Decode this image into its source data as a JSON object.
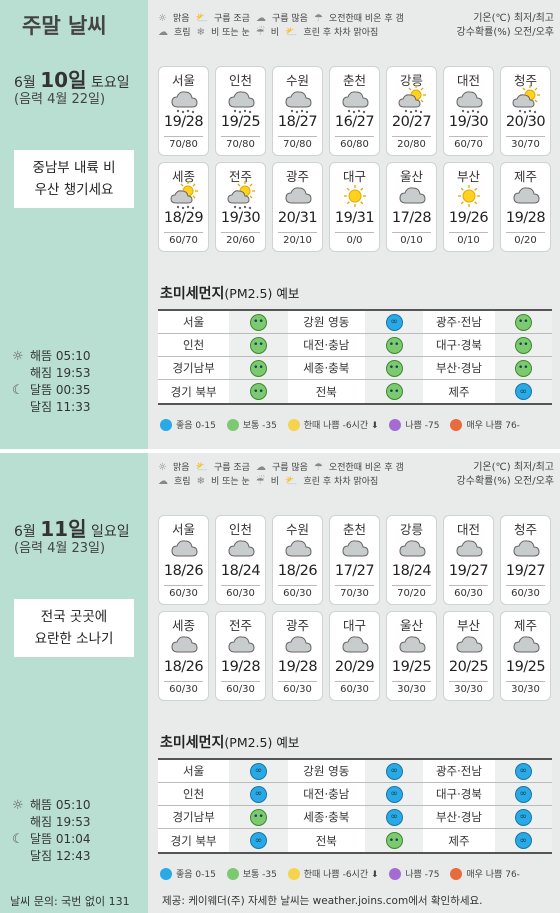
{
  "page_title": "주말 날씨",
  "legend": {
    "icons": [
      "맑음",
      "구름 조금",
      "구름 많음",
      "오전한때 비온 후 갬",
      "흐림",
      "비 또는 눈",
      "비",
      "흐린 후 차차 맑아짐"
    ],
    "right_line1": "기온(℃) 최저/최고",
    "right_line2": "강수확률(%) 오전/오후"
  },
  "days": [
    {
      "month": "6월",
      "day": "10일",
      "weekday": "토요일",
      "lunar": "(음력 4월 22일)",
      "headline_line1": "중남부 내륙 비",
      "headline_line2": "우산 챙기세요",
      "sunrise": "해뜸 05:10",
      "sunset": "해짐 19:53",
      "moonrise": "달뜸 00:35",
      "moonset": "달짐 11:33",
      "cities": [
        {
          "name": "서울",
          "temp": "19/28",
          "rain": "70/80",
          "icon": "rain-icon"
        },
        {
          "name": "인천",
          "temp": "19/25",
          "rain": "70/80",
          "icon": "rain-icon"
        },
        {
          "name": "수원",
          "temp": "18/27",
          "rain": "70/80",
          "icon": "rain-icon"
        },
        {
          "name": "춘천",
          "temp": "16/27",
          "rain": "60/80",
          "icon": "rain-icon"
        },
        {
          "name": "강릉",
          "temp": "20/27",
          "rain": "20/80",
          "icon": "sun-cloud-rain-icon"
        },
        {
          "name": "대전",
          "temp": "19/30",
          "rain": "60/70",
          "icon": "rain-icon"
        },
        {
          "name": "청주",
          "temp": "20/30",
          "rain": "30/70",
          "icon": "sun-cloud-rain-icon"
        },
        {
          "name": "세종",
          "temp": "18/29",
          "rain": "60/70",
          "icon": "sun-cloud-rain-icon"
        },
        {
          "name": "전주",
          "temp": "19/30",
          "rain": "20/60",
          "icon": "sun-cloud-rain-icon"
        },
        {
          "name": "광주",
          "temp": "20/31",
          "rain": "20/10",
          "icon": "cloud-icon"
        },
        {
          "name": "대구",
          "temp": "19/31",
          "rain": "0/0",
          "icon": "sun-icon"
        },
        {
          "name": "울산",
          "temp": "17/28",
          "rain": "0/10",
          "icon": "cloud-icon"
        },
        {
          "name": "부산",
          "temp": "19/26",
          "rain": "0/10",
          "icon": "sun-icon"
        },
        {
          "name": "제주",
          "temp": "19/28",
          "rain": "0/20",
          "icon": "cloud-icon"
        }
      ],
      "pm_title": "초미세먼지",
      "pm_sub": "(PM2.5) 예보",
      "pm_rows": [
        [
          {
            "name": "서울",
            "status": "normal"
          },
          {
            "name": "강원 영동",
            "status": "good"
          },
          {
            "name": "광주·전남",
            "status": "normal"
          }
        ],
        [
          {
            "name": "인천",
            "status": "normal"
          },
          {
            "name": "대전·충남",
            "status": "normal"
          },
          {
            "name": "대구·경북",
            "status": "normal"
          }
        ],
        [
          {
            "name": "경기남부",
            "status": "normal"
          },
          {
            "name": "세종·충북",
            "status": "normal"
          },
          {
            "name": "부산·경남",
            "status": "normal"
          }
        ],
        [
          {
            "name": "경기 북부",
            "status": "normal"
          },
          {
            "name": "전북",
            "status": "normal"
          },
          {
            "name": "제주",
            "status": "good"
          }
        ]
      ]
    },
    {
      "month": "6월",
      "day": "11일",
      "weekday": "일요일",
      "lunar": "(음력 4월 23일)",
      "headline_line1": "전국 곳곳에",
      "headline_line2": "요란한 소나기",
      "sunrise": "해뜸 05:10",
      "sunset": "해짐 19:53",
      "moonrise": "달뜸 01:04",
      "moonset": "달짐 12:43",
      "cities": [
        {
          "name": "서울",
          "temp": "18/26",
          "rain": "60/30",
          "icon": "cloud-icon"
        },
        {
          "name": "인천",
          "temp": "18/24",
          "rain": "60/30",
          "icon": "cloud-icon"
        },
        {
          "name": "수원",
          "temp": "18/26",
          "rain": "60/30",
          "icon": "cloud-icon"
        },
        {
          "name": "춘천",
          "temp": "17/27",
          "rain": "70/30",
          "icon": "cloud-icon"
        },
        {
          "name": "강릉",
          "temp": "18/24",
          "rain": "70/20",
          "icon": "cloud-icon"
        },
        {
          "name": "대전",
          "temp": "19/27",
          "rain": "60/30",
          "icon": "cloud-icon"
        },
        {
          "name": "청주",
          "temp": "19/27",
          "rain": "60/30",
          "icon": "cloud-icon"
        },
        {
          "name": "세종",
          "temp": "18/26",
          "rain": "60/30",
          "icon": "cloud-icon"
        },
        {
          "name": "전주",
          "temp": "19/28",
          "rain": "60/30",
          "icon": "cloud-icon"
        },
        {
          "name": "광주",
          "temp": "19/28",
          "rain": "60/30",
          "icon": "cloud-icon"
        },
        {
          "name": "대구",
          "temp": "20/29",
          "rain": "60/30",
          "icon": "cloud-icon"
        },
        {
          "name": "울산",
          "temp": "19/25",
          "rain": "30/30",
          "icon": "cloud-icon"
        },
        {
          "name": "부산",
          "temp": "20/25",
          "rain": "30/30",
          "icon": "cloud-icon"
        },
        {
          "name": "제주",
          "temp": "19/25",
          "rain": "30/30",
          "icon": "cloud-icon"
        }
      ],
      "pm_title": "초미세먼지",
      "pm_sub": "(PM2.5) 예보",
      "pm_rows": [
        [
          {
            "name": "서울",
            "status": "good"
          },
          {
            "name": "강원 영동",
            "status": "good"
          },
          {
            "name": "광주·전남",
            "status": "good"
          }
        ],
        [
          {
            "name": "인천",
            "status": "good"
          },
          {
            "name": "대전·충남",
            "status": "good"
          },
          {
            "name": "대구·경북",
            "status": "good"
          }
        ],
        [
          {
            "name": "경기남부",
            "status": "normal"
          },
          {
            "name": "세종·충북",
            "status": "good"
          },
          {
            "name": "부산·경남",
            "status": "good"
          }
        ],
        [
          {
            "name": "경기 북부",
            "status": "good"
          },
          {
            "name": "전북",
            "status": "normal"
          },
          {
            "name": "제주",
            "status": "good"
          }
        ]
      ]
    }
  ],
  "pm_legend": [
    "좋음 0-15",
    "보통 -35",
    "한때 나쁨 -6시간 ⬇",
    "나쁨 -75",
    "매우 나쁨 76-"
  ],
  "colors": {
    "good": "#29a9e6",
    "normal": "#7dc96f",
    "temporary-bad": "#f5d44b",
    "bad": "#a66bd3",
    "very-bad": "#e86a3d"
  },
  "footer_left": "날씨 문의: 국번 없이 131",
  "credit": "제공: 케이웨더(주) 자세한 날씨는 weather.joins.com에서 확인하세요."
}
